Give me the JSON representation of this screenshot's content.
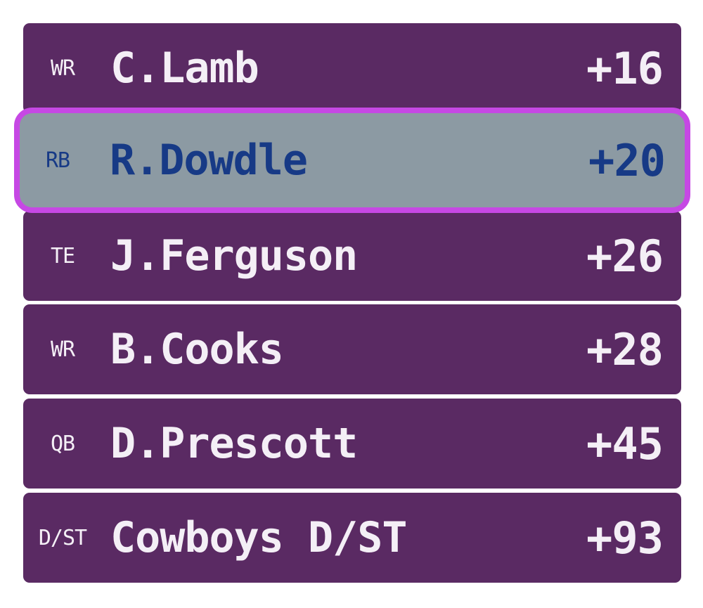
{
  "roster": [
    {
      "position": "WR",
      "player": "C.Lamb",
      "points": "+16",
      "selected": false
    },
    {
      "position": "RB",
      "player": "R.Dowdle",
      "points": "+20",
      "selected": true
    },
    {
      "position": "TE",
      "player": "J.Ferguson",
      "points": "+26",
      "selected": false
    },
    {
      "position": "WR",
      "player": "B.Cooks",
      "points": "+28",
      "selected": false
    },
    {
      "position": "QB",
      "player": "D.Prescott",
      "points": "+45",
      "selected": false
    },
    {
      "position": "D/ST",
      "player": "Cowboys D/ST",
      "points": "+93",
      "selected": false
    }
  ],
  "colors": {
    "row_background": "#5a2a63",
    "row_text": "#f4eff6",
    "selected_background": "#8c9aa3",
    "selected_text": "#173a86",
    "selected_border": "#c648e4"
  }
}
